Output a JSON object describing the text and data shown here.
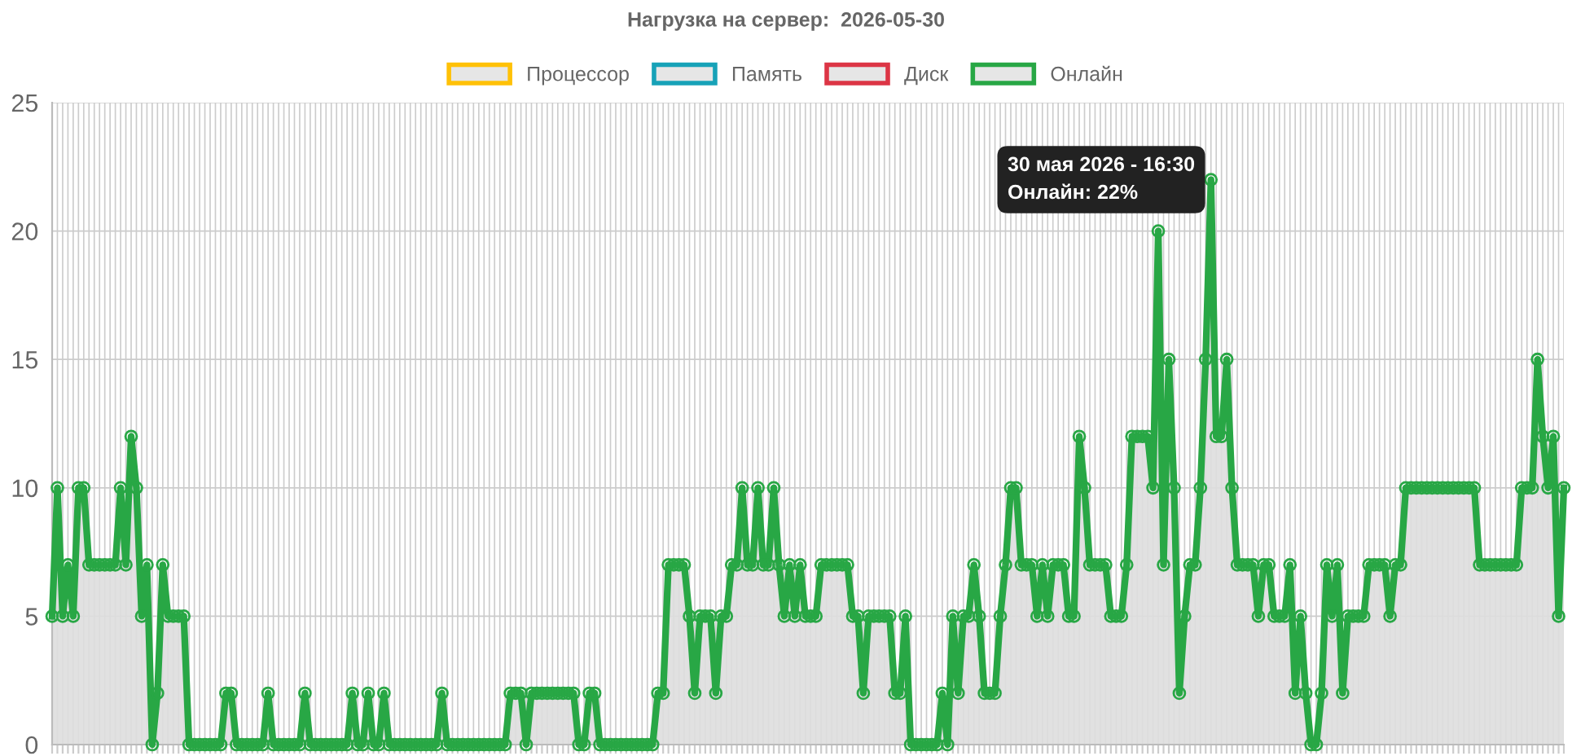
{
  "chart_data": {
    "type": "area",
    "title": "Нагрузка на сервер:  2026-05-30",
    "categories": [
      null,
      null,
      null,
      null,
      null,
      null,
      null,
      null,
      null,
      null,
      null,
      null,
      null,
      null,
      null,
      null,
      null,
      null,
      null,
      null,
      null,
      null,
      null,
      null,
      null,
      null,
      null,
      null,
      null,
      null,
      null,
      null,
      null,
      null,
      null,
      null,
      null,
      null,
      null,
      null,
      null,
      null,
      null,
      null,
      null,
      null,
      null,
      null,
      null,
      null,
      null,
      null,
      null,
      null,
      null,
      null,
      null,
      null,
      null,
      null,
      null,
      null,
      null,
      null,
      null,
      null,
      null,
      null,
      null,
      null,
      null,
      null,
      null,
      null,
      null,
      null,
      null,
      null,
      null,
      null,
      null,
      null,
      null,
      null,
      null,
      null,
      null,
      null,
      null,
      null,
      null,
      null,
      null,
      null,
      null,
      null,
      null,
      null,
      null,
      null,
      null,
      null,
      null,
      null,
      null,
      null,
      null,
      null,
      null,
      null,
      null,
      null,
      null,
      null,
      null,
      null,
      null,
      null,
      null,
      null,
      null,
      null,
      null,
      null,
      null,
      null,
      null,
      null,
      null,
      null,
      null,
      null,
      null,
      null,
      null,
      null,
      null,
      null,
      null,
      null,
      null,
      null,
      null,
      null,
      null,
      null,
      null,
      null,
      null,
      null,
      null,
      null,
      null,
      null,
      null,
      null,
      null,
      null,
      null,
      null,
      null,
      null,
      null,
      null,
      null,
      null,
      null,
      null,
      null,
      null,
      null,
      null,
      null,
      null,
      null,
      null,
      null,
      null,
      null,
      null,
      null,
      null,
      null,
      null,
      null,
      null,
      null,
      null,
      null,
      null,
      null,
      null,
      null,
      null,
      null,
      null,
      null,
      null,
      null,
      null,
      null,
      null,
      null,
      null,
      null,
      null,
      null,
      null,
      null,
      null,
      null,
      null,
      null,
      null,
      null,
      null,
      null,
      null,
      null,
      null,
      null,
      null,
      null,
      null,
      null,
      null,
      null,
      null,
      null,
      null,
      null,
      null,
      null,
      null,
      null,
      null,
      null,
      null,
      null,
      null,
      null,
      null,
      null,
      null,
      null,
      null,
      null,
      null,
      null,
      null,
      null,
      null,
      null,
      null,
      null,
      null,
      null,
      null,
      null,
      null,
      null,
      null,
      null,
      null,
      null,
      null,
      null,
      null,
      null,
      null,
      null,
      null,
      null,
      null,
      null,
      null,
      null,
      null,
      null,
      null,
      null,
      null,
      null,
      null,
      null,
      null,
      null,
      null
    ],
    "series": [
      {
        "name": "Процессор",
        "color": "#ffc107",
        "values": [
          null,
          null,
          null,
          null,
          null,
          null,
          null,
          null,
          null,
          null,
          null,
          null,
          null,
          null,
          null,
          null,
          null,
          null,
          null,
          null,
          null,
          null,
          null,
          null,
          null,
          null,
          null,
          null,
          null,
          null,
          null,
          null,
          null,
          null,
          null,
          null,
          null,
          null,
          null,
          null,
          null,
          null,
          null,
          null,
          null,
          null,
          null,
          null,
          null,
          null,
          null,
          null,
          null,
          null,
          null,
          null,
          null,
          null,
          null,
          null,
          null,
          null,
          null,
          null,
          null,
          null,
          null,
          null,
          null,
          null,
          null,
          null,
          null,
          null,
          null,
          null,
          null,
          null,
          null,
          null,
          null,
          null,
          null,
          null,
          null,
          null,
          null,
          null,
          null,
          null,
          null,
          null,
          null,
          null,
          null,
          null,
          null,
          null,
          null,
          null,
          null,
          null,
          null,
          null,
          null,
          null,
          null,
          null,
          null,
          null,
          null,
          null,
          null,
          null,
          null,
          null,
          null,
          null,
          null,
          null,
          null,
          null,
          null,
          null,
          null,
          null,
          null,
          null,
          null,
          null,
          null,
          null,
          null,
          null,
          null,
          null,
          null,
          null,
          null,
          null,
          null,
          null,
          null,
          null,
          null,
          null,
          null,
          null,
          null,
          null,
          null,
          null,
          null,
          null,
          null,
          null,
          null,
          null,
          null,
          null,
          null,
          null,
          null,
          null,
          null,
          null,
          null,
          null,
          null,
          null,
          null,
          null,
          null,
          null,
          null,
          null,
          null,
          null,
          null,
          null,
          null,
          null,
          null,
          null,
          null,
          null,
          null,
          null,
          null,
          null,
          null,
          null,
          null,
          null,
          null,
          null,
          null,
          null,
          null,
          null,
          null,
          null,
          null,
          null,
          null,
          null,
          null,
          null,
          null,
          null,
          null,
          null,
          null,
          null,
          null,
          null,
          null,
          null,
          null,
          null,
          null,
          null,
          null,
          null,
          null,
          null,
          null,
          null,
          null,
          null,
          null,
          null,
          null,
          null,
          null,
          null,
          null,
          null,
          null,
          null,
          null,
          null,
          null,
          null,
          null,
          null,
          null,
          null,
          null,
          null,
          null,
          null,
          null,
          null,
          null,
          null,
          null,
          null,
          null,
          null,
          null,
          null,
          null,
          null,
          null,
          null,
          null,
          null,
          null,
          null,
          null,
          null,
          null,
          null,
          null,
          null,
          null,
          null,
          null,
          null,
          null,
          null,
          null,
          null,
          null,
          null,
          null,
          null
        ]
      },
      {
        "name": "Память",
        "color": "#17a2b8",
        "values": [
          null,
          null,
          null,
          null,
          null,
          null,
          null,
          null,
          null,
          null,
          null,
          null,
          null,
          null,
          null,
          null,
          null,
          null,
          null,
          null,
          null,
          null,
          null,
          null,
          null,
          null,
          null,
          null,
          null,
          null,
          null,
          null,
          null,
          null,
          null,
          null,
          null,
          null,
          null,
          null,
          null,
          null,
          null,
          null,
          null,
          null,
          null,
          null,
          null,
          null,
          null,
          null,
          null,
          null,
          null,
          null,
          null,
          null,
          null,
          null,
          null,
          null,
          null,
          null,
          null,
          null,
          null,
          null,
          null,
          null,
          null,
          null,
          null,
          null,
          null,
          null,
          null,
          null,
          null,
          null,
          null,
          null,
          null,
          null,
          null,
          null,
          null,
          null,
          null,
          null,
          null,
          null,
          null,
          null,
          null,
          null,
          null,
          null,
          null,
          null,
          null,
          null,
          null,
          null,
          null,
          null,
          null,
          null,
          null,
          null,
          null,
          null,
          null,
          null,
          null,
          null,
          null,
          null,
          null,
          null,
          null,
          null,
          null,
          null,
          null,
          null,
          null,
          null,
          null,
          null,
          null,
          null,
          null,
          null,
          null,
          null,
          null,
          null,
          null,
          null,
          null,
          null,
          null,
          null,
          null,
          null,
          null,
          null,
          null,
          null,
          null,
          null,
          null,
          null,
          null,
          null,
          null,
          null,
          null,
          null,
          null,
          null,
          null,
          null,
          null,
          null,
          null,
          null,
          null,
          null,
          null,
          null,
          null,
          null,
          null,
          null,
          null,
          null,
          null,
          null,
          null,
          null,
          null,
          null,
          null,
          null,
          null,
          null,
          null,
          null,
          null,
          null,
          null,
          null,
          null,
          null,
          null,
          null,
          null,
          null,
          null,
          null,
          null,
          null,
          null,
          null,
          null,
          null,
          null,
          null,
          null,
          null,
          null,
          null,
          null,
          null,
          null,
          null,
          null,
          null,
          null,
          null,
          null,
          null,
          null,
          null,
          null,
          null,
          null,
          null,
          null,
          null,
          null,
          null,
          null,
          null,
          null,
          null,
          null,
          null,
          null,
          null,
          null,
          null,
          null,
          null,
          null,
          null,
          null,
          null,
          null,
          null,
          null,
          null,
          null,
          null,
          null,
          null,
          null,
          null,
          null,
          null,
          null,
          null,
          null,
          null,
          null,
          null,
          null,
          null,
          null,
          null,
          null,
          null,
          null,
          null,
          null,
          null,
          null,
          null,
          null,
          null,
          null,
          null,
          null,
          null,
          null,
          null
        ]
      },
      {
        "name": "Диск",
        "color": "#dc3545",
        "values": [
          null,
          null,
          null,
          null,
          null,
          null,
          null,
          null,
          null,
          null,
          null,
          null,
          null,
          null,
          null,
          null,
          null,
          null,
          null,
          null,
          null,
          null,
          null,
          null,
          null,
          null,
          null,
          null,
          null,
          null,
          null,
          null,
          null,
          null,
          null,
          null,
          null,
          null,
          null,
          null,
          null,
          null,
          null,
          null,
          null,
          null,
          null,
          null,
          null,
          null,
          null,
          null,
          null,
          null,
          null,
          null,
          null,
          null,
          null,
          null,
          null,
          null,
          null,
          null,
          null,
          null,
          null,
          null,
          null,
          null,
          null,
          null,
          null,
          null,
          null,
          null,
          null,
          null,
          null,
          null,
          null,
          null,
          null,
          null,
          null,
          null,
          null,
          null,
          null,
          null,
          null,
          null,
          null,
          null,
          null,
          null,
          null,
          null,
          null,
          null,
          null,
          null,
          null,
          null,
          null,
          null,
          null,
          null,
          null,
          null,
          null,
          null,
          null,
          null,
          null,
          null,
          null,
          null,
          null,
          null,
          null,
          null,
          null,
          null,
          null,
          null,
          null,
          null,
          null,
          null,
          null,
          null,
          null,
          null,
          null,
          null,
          null,
          null,
          null,
          null,
          null,
          null,
          null,
          null,
          null,
          null,
          null,
          null,
          null,
          null,
          null,
          null,
          null,
          null,
          null,
          null,
          null,
          null,
          null,
          null,
          null,
          null,
          null,
          null,
          null,
          null,
          null,
          null,
          null,
          null,
          null,
          null,
          null,
          null,
          null,
          null,
          null,
          null,
          null,
          null,
          null,
          null,
          null,
          null,
          null,
          null,
          null,
          null,
          null,
          null,
          null,
          null,
          null,
          null,
          null,
          null,
          null,
          null,
          null,
          null,
          null,
          null,
          null,
          null,
          null,
          null,
          null,
          null,
          null,
          null,
          null,
          null,
          null,
          null,
          null,
          null,
          null,
          null,
          null,
          null,
          null,
          null,
          null,
          null,
          null,
          null,
          null,
          null,
          null,
          null,
          null,
          null,
          null,
          null,
          null,
          null,
          null,
          null,
          null,
          null,
          null,
          null,
          null,
          null,
          null,
          null,
          null,
          null,
          null,
          null,
          null,
          null,
          null,
          null,
          null,
          null,
          null,
          null,
          null,
          null,
          null,
          null,
          null,
          null,
          null,
          null,
          null,
          null,
          null,
          null,
          null,
          null,
          null,
          null,
          null,
          null,
          null,
          null,
          null,
          null,
          null,
          null,
          null,
          null,
          null,
          null,
          null,
          null
        ]
      },
      {
        "name": "Онлайн",
        "color": "#28a745",
        "values": [
          5,
          10,
          5,
          7,
          5,
          10,
          10,
          7,
          7,
          7,
          7,
          7,
          7,
          10,
          7,
          12,
          10,
          5,
          7,
          0,
          2,
          7,
          5,
          5,
          5,
          5,
          0,
          0,
          0,
          0,
          0,
          0,
          0,
          2,
          2,
          0,
          0,
          0,
          0,
          0,
          0,
          2,
          0,
          0,
          0,
          0,
          0,
          0,
          2,
          0,
          0,
          0,
          0,
          0,
          0,
          0,
          0,
          2,
          0,
          0,
          2,
          0,
          0,
          2,
          0,
          0,
          0,
          0,
          0,
          0,
          0,
          0,
          0,
          0,
          2,
          0,
          0,
          0,
          0,
          0,
          0,
          0,
          0,
          0,
          0,
          0,
          0,
          2,
          2,
          2,
          0,
          2,
          2,
          2,
          2,
          2,
          2,
          2,
          2,
          2,
          0,
          0,
          2,
          2,
          0,
          0,
          0,
          0,
          0,
          0,
          0,
          0,
          0,
          0,
          0,
          2,
          2,
          7,
          7,
          7,
          7,
          5,
          2,
          5,
          5,
          5,
          2,
          5,
          5,
          7,
          7,
          10,
          7,
          7,
          10,
          7,
          7,
          10,
          7,
          5,
          7,
          5,
          7,
          5,
          5,
          5,
          7,
          7,
          7,
          7,
          7,
          7,
          5,
          5,
          2,
          5,
          5,
          5,
          5,
          5,
          2,
          2,
          5,
          0,
          0,
          0,
          0,
          0,
          0,
          2,
          0,
          5,
          2,
          5,
          5,
          7,
          5,
          2,
          2,
          2,
          5,
          7,
          10,
          10,
          7,
          7,
          7,
          5,
          7,
          5,
          7,
          7,
          7,
          5,
          5,
          12,
          10,
          7,
          7,
          7,
          7,
          5,
          5,
          5,
          7,
          12,
          12,
          12,
          12,
          10,
          20,
          7,
          15,
          10,
          2,
          5,
          7,
          7,
          10,
          15,
          22,
          12,
          12,
          15,
          10,
          7,
          7,
          7,
          7,
          5,
          7,
          7,
          5,
          5,
          5,
          7,
          2,
          5,
          2,
          0,
          0,
          2,
          7,
          5,
          7,
          2,
          5,
          5,
          5,
          5,
          7,
          7,
          7,
          7,
          5,
          7,
          7,
          10,
          10,
          10,
          10,
          10,
          10,
          10,
          10,
          10,
          10,
          10,
          10,
          10,
          10,
          7,
          7,
          7,
          7,
          7,
          7,
          7,
          7,
          10,
          10,
          10,
          15,
          12,
          10,
          12,
          5,
          10
        ]
      }
    ],
    "ylim": [
      0,
      25
    ],
    "yticks": [
      0,
      5,
      10,
      15,
      20,
      25
    ],
    "grid": true,
    "legend": "top",
    "marker": "circle",
    "tick_labels": "y",
    "annotations": [
      "30 мая 2026 - 16:30\nОнлайн: 22%"
    ]
  }
}
